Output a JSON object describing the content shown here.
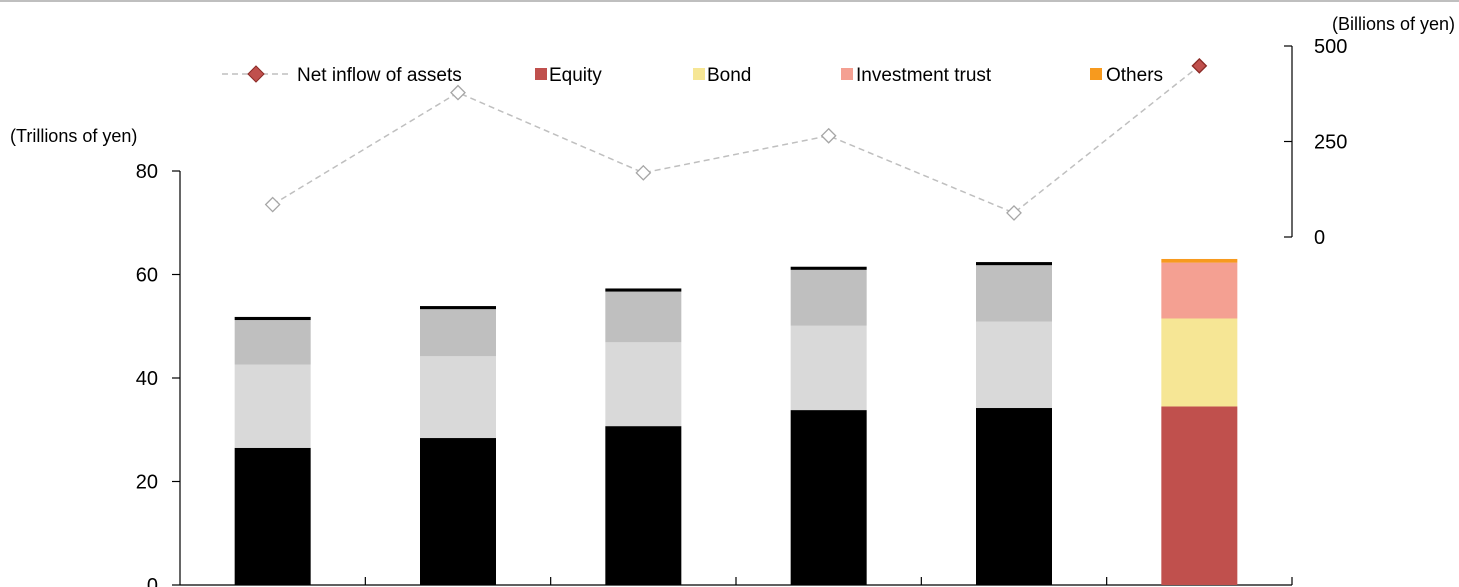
{
  "chart_data": {
    "type": "bar",
    "left_axis": {
      "unit": "(Trillions of yen)",
      "ylim": [
        0,
        80
      ],
      "ticks": [
        0,
        20,
        40,
        60,
        80
      ]
    },
    "right_axis": {
      "unit": "(Billions of yen)",
      "ylim": [
        0,
        500
      ],
      "ticks": [
        0,
        250,
        500
      ],
      "axis_span": [
        0,
        500
      ]
    },
    "categories": [
      "",
      "",
      "",
      "",
      "",
      ""
    ],
    "series": [
      {
        "name": "Equity",
        "color_latest": "#c0504d",
        "color_past": "#000000",
        "values": [
          26.5,
          28.4,
          30.7,
          33.8,
          34.2,
          34.5
        ]
      },
      {
        "name": "Bond",
        "color_latest": "#f6e695",
        "color_past": "#d9d9d9",
        "values": [
          16.1,
          15.8,
          16.2,
          16.3,
          16.7,
          17.0
        ]
      },
      {
        "name": "Investment trust",
        "color_latest": "#f4a092",
        "color_past": "#bfbfbf",
        "values": [
          8.6,
          9.1,
          9.8,
          10.8,
          10.9,
          10.8
        ]
      },
      {
        "name": "Others",
        "color_latest": "#f79a1e",
        "color_past": "#000000",
        "values": [
          0.6,
          0.6,
          0.6,
          0.6,
          0.6,
          0.7
        ]
      }
    ],
    "line_series": {
      "name": "Net inflow of assets",
      "axis": "right",
      "values": [
        85,
        378,
        168,
        265,
        63,
        448
      ],
      "marker": "diamond",
      "marker_color_latest": "#c0504d",
      "line_color": "#bfbfbf",
      "line_style": "dashed"
    },
    "legend": {
      "placement": "top"
    },
    "grid": false
  }
}
